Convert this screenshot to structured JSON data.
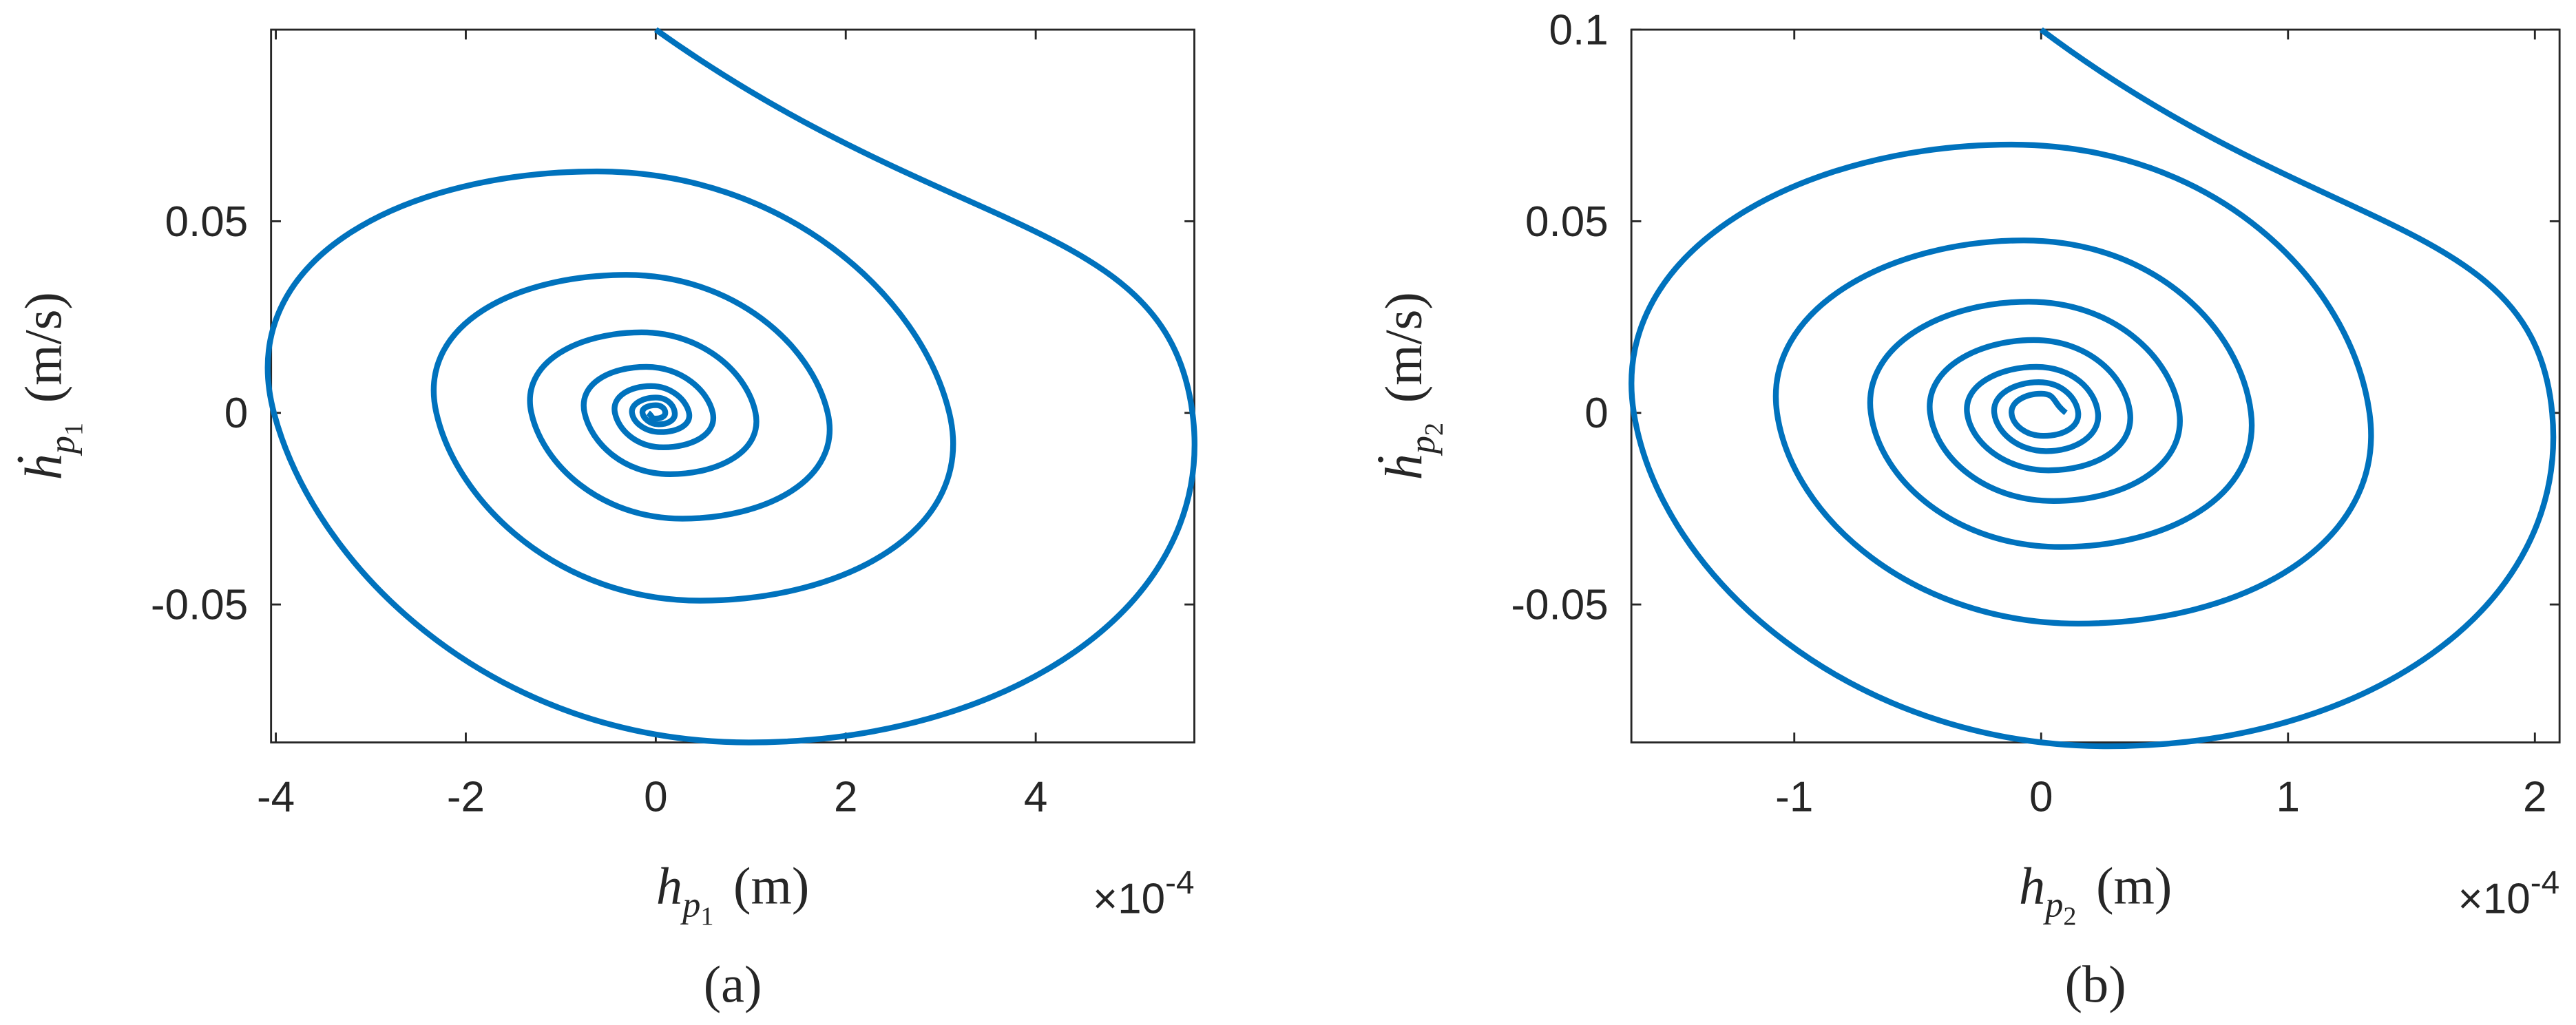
{
  "chart_data": [
    {
      "type": "line",
      "panel": "(a)",
      "color": "#0072bd",
      "x_symbol": "h",
      "x_sub": "p",
      "x_subsub": "1",
      "x_unit": "(m)",
      "y_symbol": "ḣ",
      "y_sub": "p",
      "y_subsub": "1",
      "y_unit": "(m/s)",
      "x_multiplier": "×10",
      "x_exponent": "-4",
      "xlim": [
        -4.05,
        5.67
      ],
      "ylim": [
        -0.086,
        0.1
      ],
      "xticks": [
        -4,
        -2,
        0,
        2,
        4
      ],
      "yticks": [
        -0.05,
        0,
        0.05
      ],
      "x": [
        0,
        5.65,
        0.98,
        -4.02,
        -0.62,
        3.09,
        0.47,
        -2.31,
        -0.31,
        1.81,
        0.28,
        -1.31,
        -0.15,
        1.05,
        0.15,
        -0.75,
        -0.1,
        0.6,
        0.08,
        -0.43,
        -0.05,
        0.35,
        0.05,
        -0.25,
        0,
        0.2,
        0.03,
        -0.14,
        0,
        0.1,
        0,
        -0.08
      ],
      "values": [
        0.1,
        0,
        -0.086,
        0,
        0.063,
        0,
        -0.049,
        0,
        0.036,
        0,
        -0.0276,
        0,
        0.021,
        0,
        -0.016,
        0,
        0.012,
        0,
        -0.009,
        0,
        0.007,
        0,
        -0.005,
        0,
        0.004,
        0,
        -0.003,
        0,
        0.002,
        0,
        -0.0015,
        0
      ]
    },
    {
      "type": "line",
      "panel": "(b)",
      "color": "#0072bd",
      "x_symbol": "h",
      "x_sub": "p",
      "x_subsub": "2",
      "x_unit": "(m)",
      "y_symbol": "ḣ",
      "y_sub": "p",
      "y_subsub": "2",
      "y_unit": "(m/s)",
      "x_multiplier": "×10",
      "x_exponent": "-4",
      "xlim": [
        -1.66,
        2.1
      ],
      "ylim": [
        -0.086,
        0.1
      ],
      "xticks": [
        -1,
        0,
        1,
        2
      ],
      "yticks": [
        -0.05,
        0,
        0.05,
        0.1
      ],
      "x": [
        0,
        2.07,
        0.27,
        -1.65,
        -0.12,
        1.33,
        0.15,
        -1.07,
        -0.07,
        0.85,
        0.08,
        -0.69,
        -0.05,
        0.56,
        0.05,
        -0.45,
        -0.03,
        0.36,
        0.03,
        -0.3,
        -0.02,
        0.23,
        0.02,
        -0.19,
        -0.01,
        0.15,
        0.01,
        -0.12,
        0,
        0.1
      ],
      "values": [
        0.1,
        0,
        -0.087,
        0,
        0.07,
        0,
        -0.055,
        0,
        0.045,
        0,
        -0.035,
        0,
        0.029,
        0,
        -0.023,
        0,
        0.019,
        0,
        -0.015,
        0,
        0.012,
        0,
        -0.01,
        0,
        0.008,
        0,
        -0.006,
        0,
        0.005,
        0
      ]
    }
  ]
}
